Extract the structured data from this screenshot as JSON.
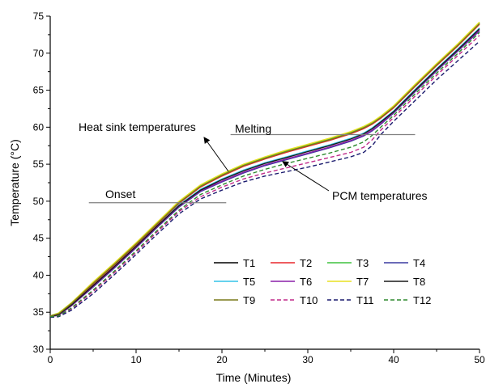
{
  "chart_data": {
    "type": "line",
    "title": "",
    "xlabel": "Time (Minutes)",
    "ylabel": "Temperature (°C)",
    "xlim": [
      0,
      50
    ],
    "ylim": [
      30,
      75
    ],
    "x_ticks": [
      0,
      10,
      20,
      30,
      40,
      50
    ],
    "y_ticks": [
      30,
      35,
      40,
      45,
      50,
      55,
      60,
      65,
      70,
      75
    ],
    "grid": false,
    "legend_position": "bottom-right",
    "x": [
      0,
      1,
      2.5,
      5,
      7.5,
      10,
      12.5,
      15,
      17.5,
      20,
      22.5,
      25,
      27.5,
      30,
      32.5,
      35,
      36.5,
      37.5,
      38.5,
      40,
      42.5,
      45,
      47.5,
      50
    ],
    "series": [
      {
        "name": "T1",
        "color": "#000000",
        "dash": "solid",
        "values": [
          34.5,
          34.8,
          36.2,
          38.9,
          41.5,
          44.2,
          47.0,
          49.8,
          52.0,
          53.5,
          54.8,
          55.8,
          56.7,
          57.5,
          58.3,
          59.2,
          59.9,
          60.5,
          61.3,
          62.7,
          65.6,
          68.4,
          71.1,
          74.0
        ]
      },
      {
        "name": "T2",
        "color": "#e8262b",
        "dash": "solid",
        "values": [
          34.5,
          34.8,
          36.1,
          38.8,
          41.4,
          44.1,
          46.9,
          49.7,
          51.9,
          53.4,
          54.7,
          55.7,
          56.6,
          57.4,
          58.2,
          59.1,
          59.8,
          60.4,
          61.2,
          62.6,
          65.5,
          68.3,
          71.0,
          73.9
        ]
      },
      {
        "name": "T3",
        "color": "#3ec23e",
        "dash": "solid",
        "values": [
          34.5,
          34.9,
          36.3,
          39.0,
          41.6,
          44.3,
          47.1,
          49.9,
          52.1,
          53.6,
          54.9,
          55.9,
          56.8,
          57.6,
          58.4,
          59.3,
          60.0,
          60.6,
          61.4,
          62.8,
          65.7,
          68.5,
          71.2,
          74.1
        ]
      },
      {
        "name": "T4",
        "color": "#3a3aa0",
        "dash": "solid",
        "values": [
          34.4,
          34.6,
          35.9,
          38.4,
          41.0,
          43.7,
          46.5,
          49.2,
          51.3,
          52.6,
          53.8,
          54.8,
          55.6,
          56.4,
          57.2,
          58.1,
          58.8,
          59.5,
          60.4,
          61.9,
          64.8,
          67.6,
          70.3,
          73.0
        ]
      },
      {
        "name": "T5",
        "color": "#33c4e8",
        "dash": "solid",
        "values": [
          34.4,
          34.7,
          36.0,
          38.6,
          41.2,
          43.9,
          46.7,
          49.5,
          51.6,
          53.0,
          54.2,
          55.2,
          56.0,
          56.8,
          57.6,
          58.5,
          59.2,
          59.9,
          60.8,
          62.2,
          65.1,
          67.9,
          70.6,
          73.4
        ]
      },
      {
        "name": "T6",
        "color": "#8a1fa8",
        "dash": "solid",
        "values": [
          34.4,
          34.6,
          35.9,
          38.5,
          41.1,
          43.8,
          46.6,
          49.3,
          51.4,
          52.7,
          53.9,
          54.9,
          55.7,
          56.5,
          57.3,
          58.2,
          58.9,
          59.6,
          60.5,
          62.0,
          64.9,
          67.7,
          70.4,
          73.1
        ]
      },
      {
        "name": "T7",
        "color": "#e8e020",
        "dash": "solid",
        "values": [
          34.5,
          34.9,
          36.3,
          39.1,
          41.7,
          44.4,
          47.2,
          50.0,
          52.2,
          53.7,
          55.0,
          56.0,
          56.9,
          57.7,
          58.5,
          59.4,
          60.1,
          60.7,
          61.5,
          62.9,
          65.8,
          68.6,
          71.3,
          74.2
        ]
      },
      {
        "name": "T8",
        "color": "#1a1a1a",
        "dash": "solid",
        "values": [
          34.4,
          34.7,
          36.0,
          38.6,
          41.2,
          43.9,
          46.7,
          49.4,
          51.5,
          52.9,
          54.1,
          55.1,
          55.9,
          56.7,
          57.5,
          58.4,
          59.1,
          59.8,
          60.7,
          62.1,
          65.0,
          67.8,
          70.5,
          73.3
        ]
      },
      {
        "name": "T9",
        "color": "#7a7a1a",
        "dash": "solid",
        "values": [
          34.5,
          34.8,
          36.2,
          38.9,
          41.5,
          44.2,
          47.0,
          49.8,
          52.0,
          53.5,
          54.8,
          55.8,
          56.7,
          57.5,
          58.3,
          59.2,
          59.9,
          60.5,
          61.3,
          62.7,
          65.6,
          68.4,
          71.1,
          74.0
        ]
      },
      {
        "name": "T10",
        "color": "#c02a8a",
        "dash": "dashed",
        "values": [
          34.4,
          34.5,
          35.5,
          37.8,
          40.4,
          43.1,
          45.9,
          48.6,
          50.6,
          51.9,
          53.0,
          53.8,
          54.5,
          55.2,
          55.9,
          56.6,
          57.3,
          58.3,
          59.6,
          61.3,
          64.2,
          67.0,
          69.7,
          72.4
        ]
      },
      {
        "name": "T11",
        "color": "#1a1a6e",
        "dash": "dashed",
        "values": [
          34.3,
          34.4,
          35.3,
          37.5,
          40.1,
          42.8,
          45.6,
          48.3,
          50.3,
          51.5,
          52.6,
          53.4,
          54.0,
          54.6,
          55.3,
          56.0,
          56.6,
          57.5,
          59.0,
          60.8,
          63.6,
          66.4,
          69.0,
          71.6
        ]
      },
      {
        "name": "T12",
        "color": "#2e8a2e",
        "dash": "dashed",
        "values": [
          34.4,
          34.5,
          35.6,
          38.0,
          40.6,
          43.3,
          46.1,
          48.8,
          50.9,
          52.2,
          53.4,
          54.3,
          55.1,
          55.8,
          56.5,
          57.3,
          58.0,
          58.9,
          60.0,
          61.6,
          64.5,
          67.3,
          70.0,
          72.8
        ]
      }
    ],
    "annotations": {
      "heat_sink": {
        "text": "Heat sink temperatures",
        "arrow_to": [
          27.5,
          56.8
        ]
      },
      "melting": {
        "text": "Melting",
        "line_y": 59,
        "line_x": [
          21,
          42.5
        ]
      },
      "onset": {
        "text": "Onset",
        "line_y": 49.8,
        "line_x": [
          4.5,
          20.5
        ]
      },
      "pcm": {
        "text": "PCM temperatures",
        "arrow_to": [
          31.5,
          57.2
        ]
      }
    }
  }
}
